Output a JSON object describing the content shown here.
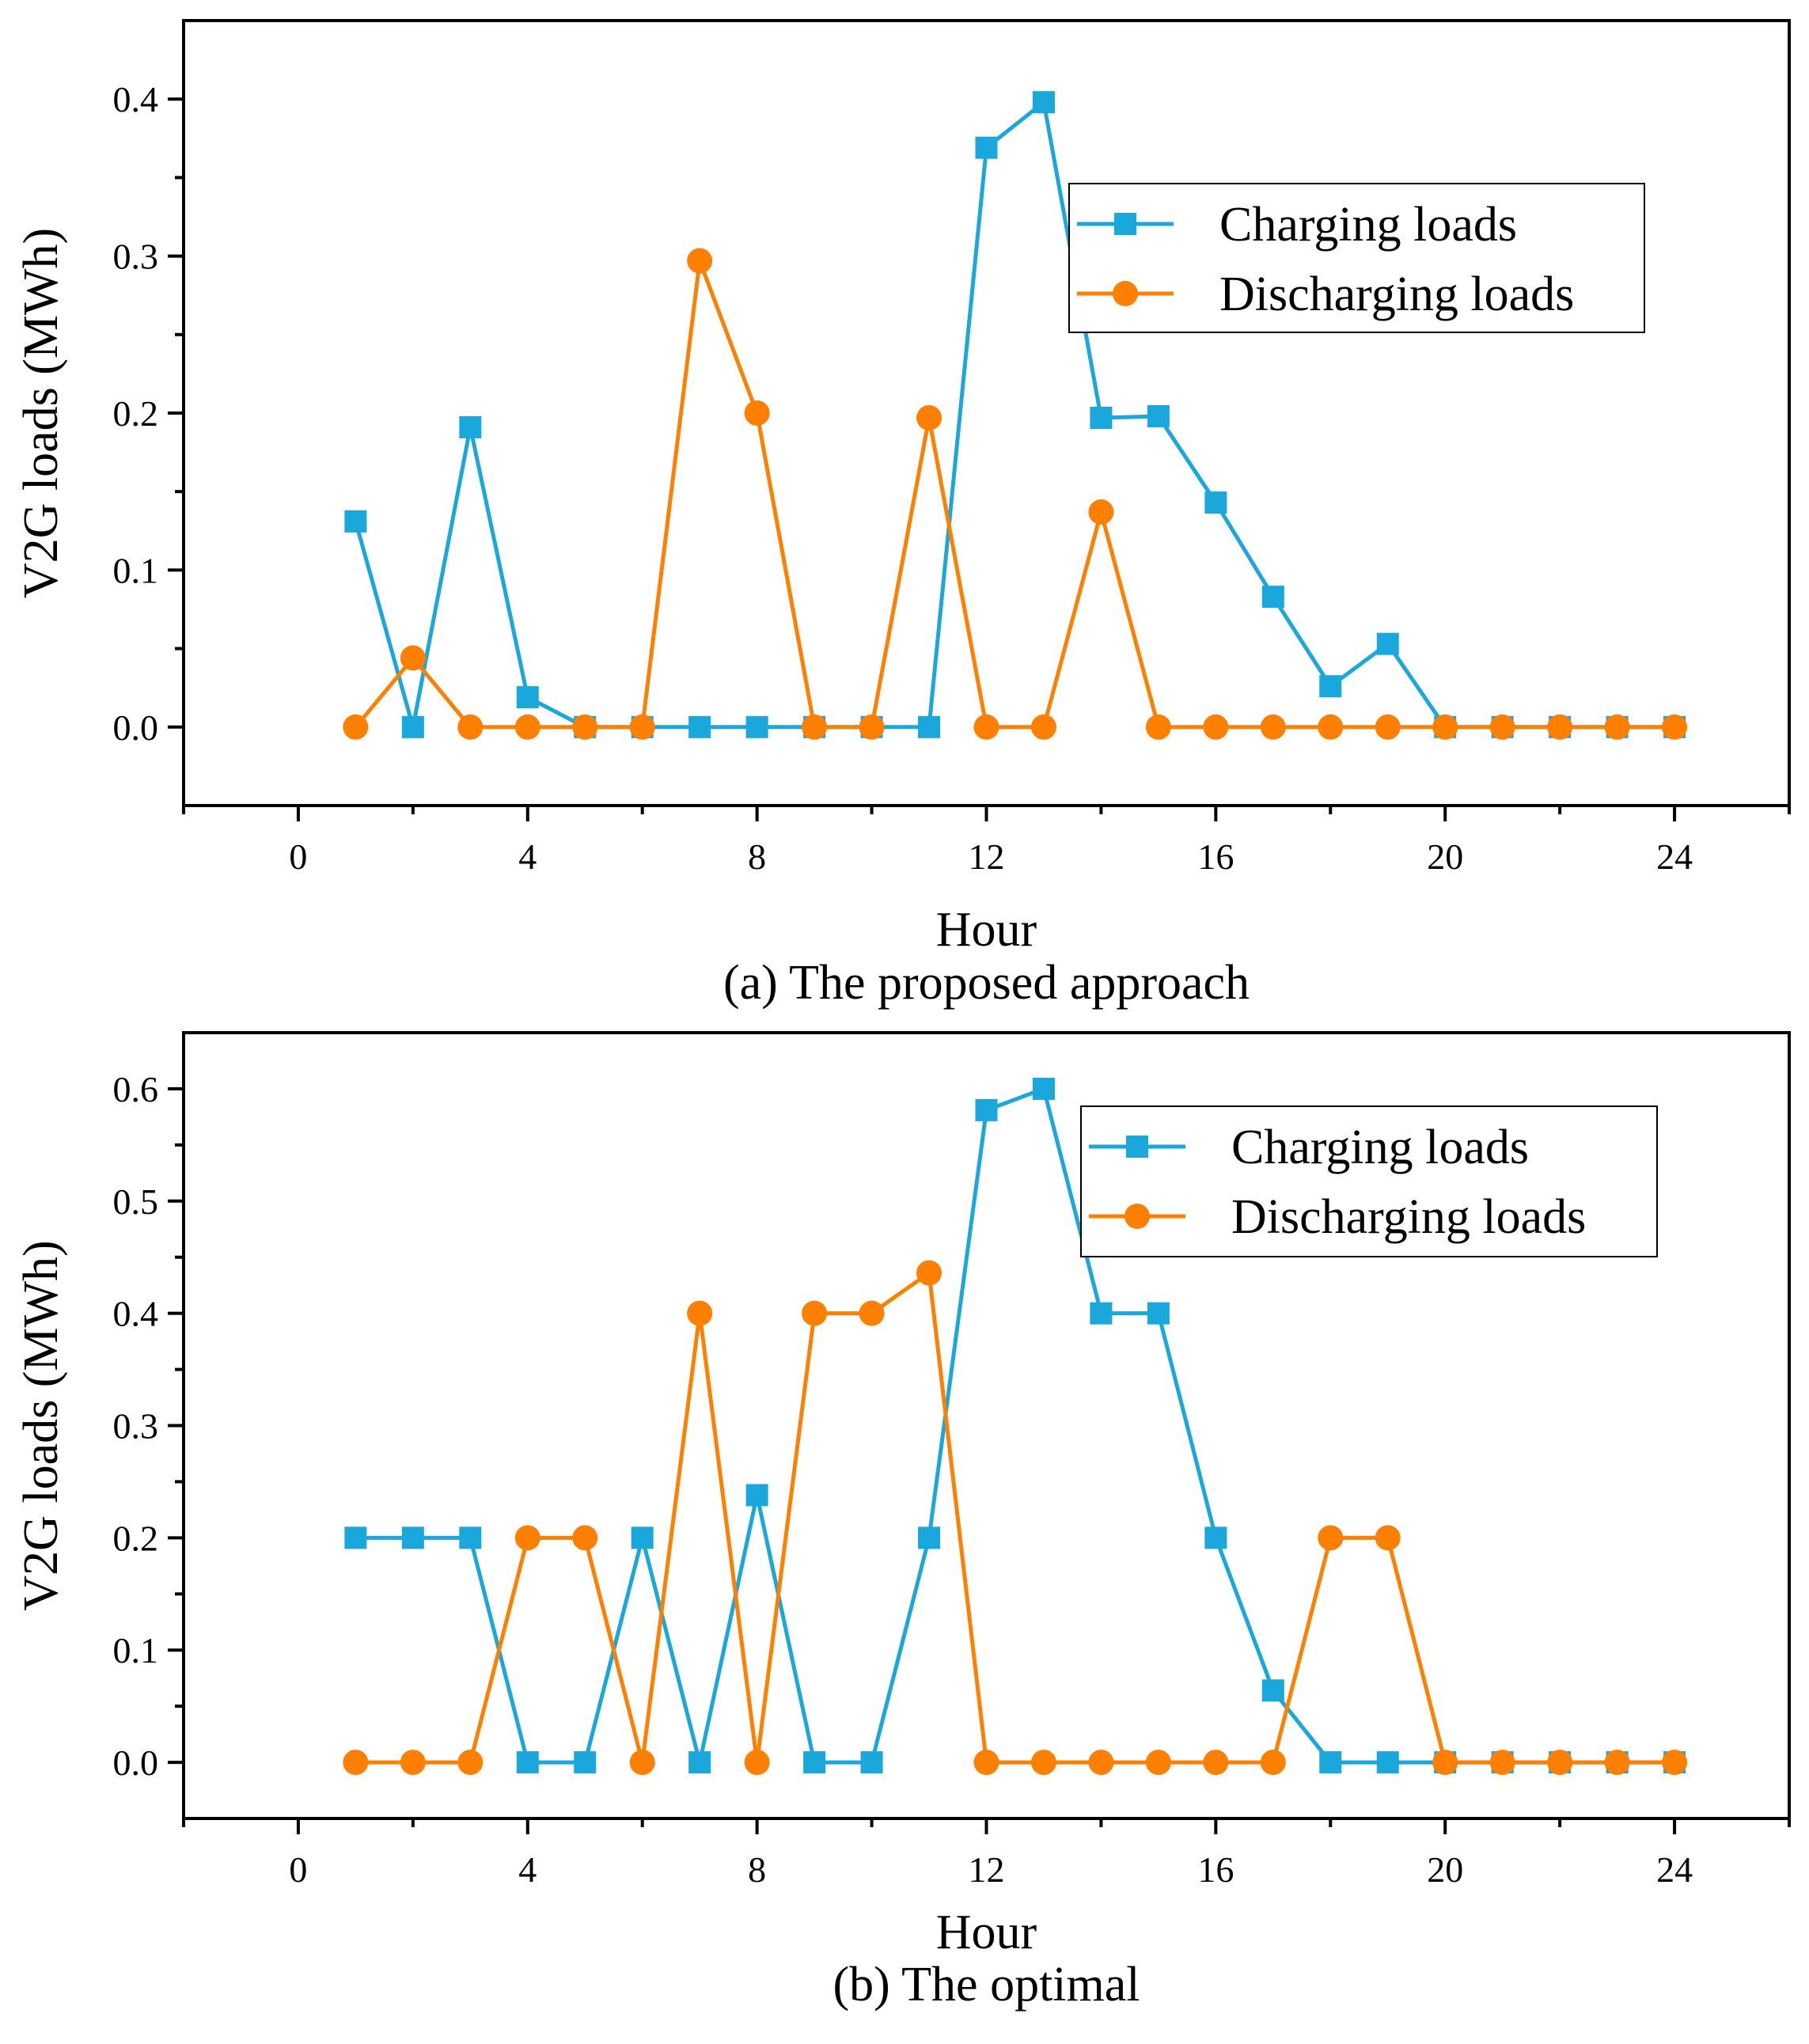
{
  "figure": {
    "captions": [
      "(a)  The proposed approach",
      "(b)  The optimal"
    ]
  },
  "colors": {
    "charging": "#1aa7dc",
    "discharging": "#ff8000",
    "axis": "#000000"
  },
  "chart_data": [
    {
      "type": "line",
      "caption": "(a)  The proposed approach",
      "xlabel": "Hour",
      "ylabel": "V2G loads (MWh)",
      "xlim": [
        -2,
        26
      ],
      "ylim": [
        -0.05,
        0.45
      ],
      "xticks": [
        0,
        4,
        8,
        12,
        16,
        20,
        24
      ],
      "xtick_labels": [
        "0",
        "4",
        "8",
        "12",
        "16",
        "20",
        "24"
      ],
      "yticks": [
        0.0,
        0.1,
        0.2,
        0.3,
        0.4
      ],
      "ytick_labels": [
        "0.0",
        "0.1",
        "0.2",
        "0.3",
        "0.4"
      ],
      "legend_position": "top-right",
      "x": [
        1,
        2,
        3,
        4,
        5,
        6,
        7,
        8,
        9,
        10,
        11,
        12,
        13,
        14,
        15,
        16,
        17,
        18,
        19,
        20,
        21,
        22,
        23,
        24
      ],
      "series": [
        {
          "name": "Charging loads",
          "marker": "square",
          "color_key": "charging",
          "values": [
            0.131,
            0.0,
            0.191,
            0.019,
            0.0,
            0.0,
            0.0,
            0.0,
            0.0,
            0.0,
            0.0,
            0.369,
            0.398,
            0.197,
            0.198,
            0.143,
            0.083,
            0.026,
            0.053,
            0.0,
            0.0,
            0.0,
            0.0,
            0.0
          ]
        },
        {
          "name": "Discharging loads",
          "marker": "circle",
          "color_key": "discharging",
          "values": [
            0.0,
            0.044,
            0.0,
            0.0,
            0.0,
            0.0,
            0.297,
            0.2,
            0.0,
            0.0,
            0.197,
            0.0,
            0.0,
            0.137,
            0.0,
            0.0,
            0.0,
            0.0,
            0.0,
            0.0,
            0.0,
            0.0,
            0.0,
            0.0
          ]
        }
      ]
    },
    {
      "type": "line",
      "caption": "(b)  The optimal",
      "xlabel": "Hour",
      "ylabel": "V2G loads (MWh)",
      "xlim": [
        -2,
        26
      ],
      "ylim": [
        -0.05,
        0.65
      ],
      "xticks": [
        0,
        4,
        8,
        12,
        16,
        20,
        24
      ],
      "xtick_labels": [
        "0",
        "4",
        "8",
        "12",
        "16",
        "20",
        "24"
      ],
      "yticks": [
        0.0,
        0.1,
        0.2,
        0.3,
        0.4,
        0.5,
        0.6
      ],
      "ytick_labels": [
        "0.0",
        "0.1",
        "0.2",
        "0.3",
        "0.4",
        "0.5",
        "0.6"
      ],
      "legend_position": "top-right",
      "x": [
        1,
        2,
        3,
        4,
        5,
        6,
        7,
        8,
        9,
        10,
        11,
        12,
        13,
        14,
        15,
        16,
        17,
        18,
        19,
        20,
        21,
        22,
        23,
        24
      ],
      "series": [
        {
          "name": "Charging loads",
          "marker": "square",
          "color_key": "charging",
          "values": [
            0.2,
            0.2,
            0.2,
            0.0,
            0.0,
            0.2,
            0.0,
            0.238,
            0.0,
            0.0,
            0.2,
            0.581,
            0.6,
            0.4,
            0.4,
            0.2,
            0.064,
            0.0,
            0.0,
            0.0,
            0.0,
            0.0,
            0.0,
            0.0
          ]
        },
        {
          "name": "Discharging loads",
          "marker": "circle",
          "color_key": "discharging",
          "values": [
            0.0,
            0.0,
            0.0,
            0.2,
            0.2,
            0.0,
            0.4,
            0.0,
            0.4,
            0.4,
            0.436,
            0.0,
            0.0,
            0.0,
            0.0,
            0.0,
            0.0,
            0.2,
            0.2,
            0.0,
            0.0,
            0.0,
            0.0,
            0.0
          ]
        }
      ]
    }
  ]
}
